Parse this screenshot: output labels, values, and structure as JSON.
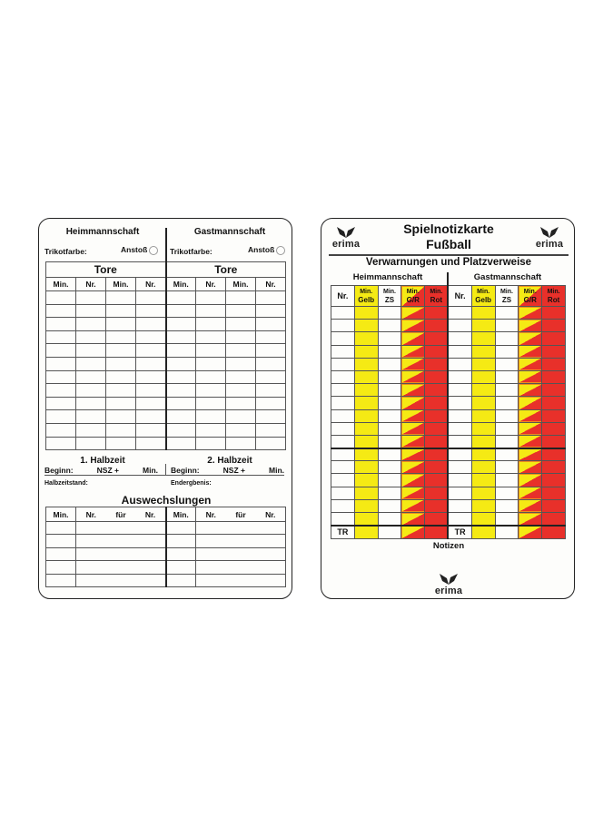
{
  "left_card": {
    "home_team": "Heimmannschaft",
    "away_team": "Gastmannschaft",
    "shirt_color_label": "Trikotfarbe:",
    "kickoff_label": "Anstoß",
    "goals_title": "Tore",
    "goals_columns": [
      "Min.",
      "Nr.",
      "Min.",
      "Nr."
    ],
    "first_half": "1. Halbzeit",
    "second_half": "2. Halbzeit",
    "start_label": "Beginn:",
    "stoppage_label": "NSZ +",
    "min_label": "Min.",
    "halftime_score_label": "Halbzeitstand:",
    "final_score_label": "Endergbenis:",
    "subs_title": "Auswechslungen",
    "subs_columns": [
      "Min.",
      "Nr.",
      "für",
      "Nr."
    ]
  },
  "right_card": {
    "title_line1": "Spielnotizkarte",
    "title_line2": "Fußball",
    "brand": "erima",
    "subtitle": "Verwarnungen und Platzverweise",
    "home_team": "Heimmannschaft",
    "away_team": "Gastmannschaft",
    "columns": [
      {
        "top": "",
        "bottom": "Nr."
      },
      {
        "top": "Min.",
        "bottom": "Gelb"
      },
      {
        "top": "Min.",
        "bottom": "ZS"
      },
      {
        "top": "Min.",
        "bottom": "G/R"
      },
      {
        "top": "Min.",
        "bottom": "Rot"
      }
    ],
    "team_official_label": "TR",
    "notes_label": "Notizen"
  },
  "colors": {
    "yellow": "#f5ea14",
    "red": "#e8302a"
  }
}
